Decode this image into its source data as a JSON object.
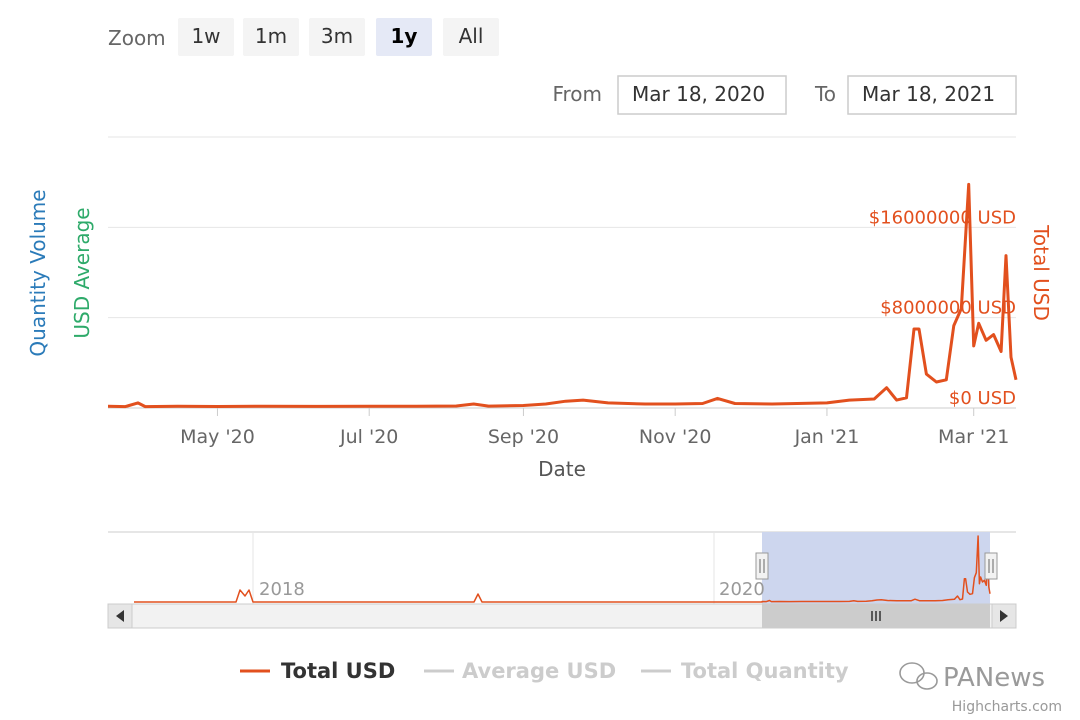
{
  "range_selector": {
    "zoom_label": "Zoom",
    "buttons": [
      "1w",
      "1m",
      "3m",
      "1y",
      "All"
    ],
    "selected": "1y",
    "from_label": "From",
    "from_value": "Mar 18, 2020",
    "to_label": "To",
    "to_value": "Mar 18, 2021"
  },
  "colors": {
    "total_usd": "#e2501e",
    "usd_average": "#2eaa6a",
    "quantity_volume": "#2b7bb9",
    "navigator_mask": "#cdd6ee",
    "legend_inactive": "#cccccc"
  },
  "chart_data": {
    "type": "line",
    "xlabel": "Date",
    "x_tick_labels": [
      "May '20",
      "Jul '20",
      "Sep '20",
      "Nov '20",
      "Jan '21",
      "Mar '21"
    ],
    "x_ticks": [
      "2020-05-01",
      "2020-07-01",
      "2020-09-01",
      "2020-11-01",
      "2021-01-01",
      "2021-03-01"
    ],
    "xlim": [
      "2020-03-18",
      "2021-03-18"
    ],
    "y_axes": [
      {
        "name": "Quantity Volume",
        "side": "left"
      },
      {
        "name": "USD Average",
        "side": "left"
      },
      {
        "name": "Total USD",
        "side": "right",
        "ticks": [
          0,
          8000000,
          16000000
        ],
        "tick_labels": [
          "$0 USD",
          "$8000000 USD",
          "$16000000 USD"
        ],
        "ylim": [
          0,
          24000000
        ]
      }
    ],
    "series": [
      {
        "name": "Total USD",
        "color": "#e2501e",
        "points": [
          [
            "2020-03-18",
            150000
          ],
          [
            "2020-03-25",
            120000
          ],
          [
            "2020-03-30",
            450000
          ],
          [
            "2020-04-02",
            120000
          ],
          [
            "2020-04-15",
            150000
          ],
          [
            "2020-05-01",
            130000
          ],
          [
            "2020-05-20",
            160000
          ],
          [
            "2020-06-10",
            140000
          ],
          [
            "2020-07-01",
            150000
          ],
          [
            "2020-07-20",
            150000
          ],
          [
            "2020-08-05",
            180000
          ],
          [
            "2020-08-12",
            350000
          ],
          [
            "2020-08-18",
            170000
          ],
          [
            "2020-09-01",
            220000
          ],
          [
            "2020-09-10",
            350000
          ],
          [
            "2020-09-18",
            600000
          ],
          [
            "2020-09-25",
            700000
          ],
          [
            "2020-10-05",
            450000
          ],
          [
            "2020-10-20",
            350000
          ],
          [
            "2020-11-01",
            350000
          ],
          [
            "2020-11-12",
            400000
          ],
          [
            "2020-11-18",
            850000
          ],
          [
            "2020-11-25",
            400000
          ],
          [
            "2020-12-10",
            350000
          ],
          [
            "2020-12-20",
            400000
          ],
          [
            "2021-01-01",
            450000
          ],
          [
            "2021-01-10",
            700000
          ],
          [
            "2021-01-20",
            800000
          ],
          [
            "2021-01-25",
            1800000
          ],
          [
            "2021-01-29",
            700000
          ],
          [
            "2021-02-02",
            900000
          ],
          [
            "2021-02-05",
            7000000
          ],
          [
            "2021-02-07",
            7000000
          ],
          [
            "2021-02-10",
            3000000
          ],
          [
            "2021-02-14",
            2300000
          ],
          [
            "2021-02-18",
            2500000
          ],
          [
            "2021-02-21",
            7300000
          ],
          [
            "2021-02-24",
            8800000
          ],
          [
            "2021-02-27",
            19800000
          ],
          [
            "2021-03-01",
            5500000
          ],
          [
            "2021-03-03",
            7500000
          ],
          [
            "2021-03-06",
            6000000
          ],
          [
            "2021-03-09",
            6500000
          ],
          [
            "2021-03-12",
            5000000
          ],
          [
            "2021-03-14",
            13500000
          ],
          [
            "2021-03-16",
            4500000
          ],
          [
            "2021-03-18",
            2500000
          ]
        ]
      },
      {
        "name": "Average USD",
        "color": "#cccccc",
        "points": []
      },
      {
        "name": "Total Quantity",
        "color": "#cccccc",
        "points": []
      }
    ],
    "legend": {
      "placement": "bottom-center",
      "entries": [
        "Total USD",
        "Average USD",
        "Total Quantity"
      ]
    },
    "navigator": {
      "tick_labels": [
        "2018",
        "2020"
      ],
      "selected_range": [
        "2020-03-18",
        "2021-03-18"
      ]
    }
  },
  "credits": "Highcharts.com",
  "watermark": "PANews"
}
